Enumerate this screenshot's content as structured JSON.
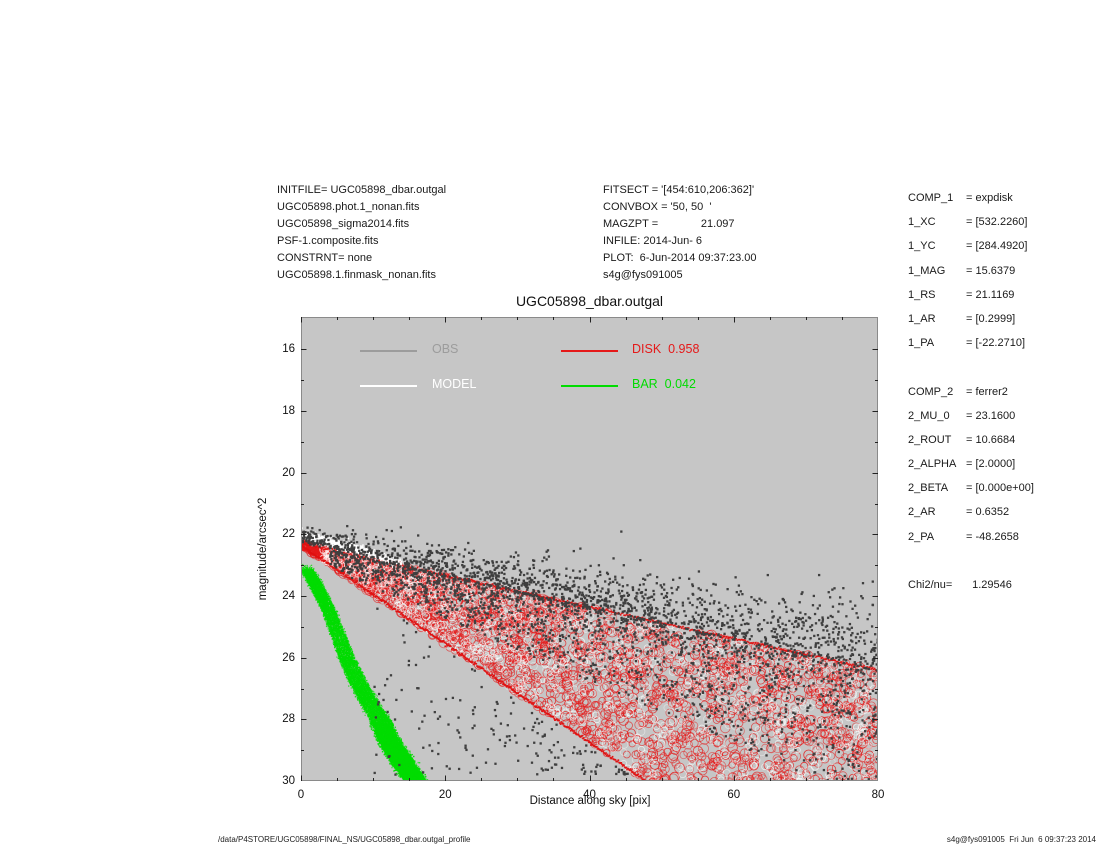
{
  "page_title": "UGC05898_dbar.outgal profile plot",
  "colors": {
    "page_bg": "#ffffff",
    "plot_bg": "#c6c6c6",
    "obs_point": "#3f3f3f",
    "obs_legend": "#9c9c9c",
    "model": "#ffffff",
    "disk": "#e51919",
    "disk_edge": "#e01010",
    "bar": "#00dc00",
    "axis_frame": "#8a8a8a",
    "tick": "#222222"
  },
  "file_info": {
    "lines": [
      "INITFILE= UGC05898_dbar.outgal",
      "UGC05898.phot.1_nonan.fits",
      "UGC05898_sigma2014.fits",
      "PSF-1.composite.fits",
      "CONSTRNT= none",
      "UGC05898.1.finmask_nonan.fits"
    ]
  },
  "fit_info": {
    "lines": [
      "FITSECT = '[454:610,206:362]'",
      "CONVBOX = '50, 50  '",
      "MAGZPT =              21.097",
      "INFILE: 2014-Jun- 6",
      "PLOT:  6-Jun-2014 09:37:23.00",
      "s4g@fys091005"
    ]
  },
  "params_panel": {
    "rows": [
      {
        "label": "COMP_1",
        "value": "expdisk"
      },
      {
        "label": "1_XC",
        "value": "[532.2260]"
      },
      {
        "label": "1_YC",
        "value": "[284.4920]"
      },
      {
        "label": "1_MAG",
        "value": "15.6379"
      },
      {
        "label": "1_RS",
        "value": "21.1169"
      },
      {
        "label": "1_AR",
        "value": "[0.2999]"
      },
      {
        "label": "1_PA",
        "value": "[-22.2710]"
      },
      {
        "label": "",
        "value": ""
      },
      {
        "label": "COMP_2",
        "value": "ferrer2"
      },
      {
        "label": "2_MU_0",
        "value": "23.1600"
      },
      {
        "label": "2_ROUT",
        "value": "10.6684"
      },
      {
        "label": "2_ALPHA",
        "value": "[2.0000]"
      },
      {
        "label": "2_BETA",
        "value": "[0.000e+00]"
      },
      {
        "label": "2_AR",
        "value": "0.6352"
      },
      {
        "label": "2_PA",
        "value": "-48.2658"
      },
      {
        "label": "",
        "value": ""
      },
      {
        "label": "Chi2/nu=",
        "value": "1.29546"
      }
    ]
  },
  "footer": {
    "left": "/data/P4STORE/UGC05898/FINAL_NS/UGC05898_dbar.outgal_profile",
    "right": "s4g@fys091005  Fri Jun  6 09:37:23 2014"
  },
  "chart_data": {
    "type": "scatter",
    "title": "UGC05898_dbar.outgal",
    "xlabel": "Distance along sky [pix]",
    "ylabel": "magnitude/arcsec^2",
    "xlim": [
      0,
      80
    ],
    "ylim": [
      30,
      14.95
    ],
    "y_axis_inverted": true,
    "xticks": [
      0,
      20,
      40,
      60,
      80
    ],
    "yticks": [
      16,
      18,
      20,
      22,
      24,
      26,
      28,
      30
    ],
    "grid": false,
    "background": "#c6c6c6",
    "legend_position": "top-left-inside",
    "legend": [
      {
        "id": "obs",
        "label": "OBS",
        "value": "",
        "color": "#9c9c9c",
        "row": 0,
        "col": 0
      },
      {
        "id": "model",
        "label": "MODEL",
        "value": "",
        "color": "#ffffff",
        "row": 1,
        "col": 0
      },
      {
        "id": "disk",
        "label": "DISK",
        "value": "0.958",
        "color": "#e51919",
        "row": 0,
        "col": 1
      },
      {
        "id": "bar",
        "label": "BAR",
        "value": "0.042",
        "color": "#00dc00",
        "row": 1,
        "col": 1
      }
    ],
    "series": [
      {
        "name": "OBS",
        "type": "scatter-cloud",
        "marker": "square",
        "color": "#3f3f3f",
        "description": "observed pixel surface-brightness values scattered around the disk wedge; spread grows with distance",
        "above_sigma_base": 0.22,
        "above_sigma_slope": 0.011,
        "inside_depth_base": 0.4,
        "inside_depth_slope": 0.05,
        "n_above": 1300,
        "n_inside": 1700,
        "n_below": 170,
        "n_center": 16
      },
      {
        "name": "MODEL",
        "type": "streak",
        "color": "#ffffff",
        "description": "total model (disk+bar) ridge just above disk wedge apex",
        "points": [
          [
            0,
            22.02
          ],
          [
            3,
            22.2
          ],
          [
            6,
            22.38
          ],
          [
            9,
            22.56
          ],
          [
            11,
            22.7
          ],
          [
            14,
            22.95
          ]
        ]
      },
      {
        "name": "DISK",
        "type": "wedge",
        "color": "#e51919",
        "fraction": 0.958,
        "profile": "expdisk, mu0 ~22.3 mag/arcsec^2, slope ~0.0514 mag/pix along major axis",
        "top_edge": [
          [
            0,
            22.3
          ],
          [
            80,
            26.41
          ]
        ],
        "bottom_edge": [
          [
            0,
            22.35
          ],
          [
            47.8,
            30.0
          ]
        ]
      },
      {
        "name": "BAR",
        "type": "band",
        "color": "#00dc00",
        "fraction": 0.042,
        "profile": "ferrer2, mu_0 23.16, rout 10.67",
        "centerline": [
          [
            0.8,
            23.15
          ],
          [
            2,
            23.6
          ],
          [
            3,
            24.05
          ],
          [
            4,
            24.55
          ],
          [
            5,
            25.15
          ],
          [
            6,
            25.8
          ],
          [
            7,
            26.35
          ],
          [
            8,
            26.85
          ],
          [
            9,
            27.25
          ],
          [
            10,
            27.65
          ],
          [
            11,
            28.05
          ],
          [
            12,
            28.6
          ],
          [
            13,
            29.0
          ],
          [
            14,
            29.35
          ],
          [
            15,
            29.7
          ],
          [
            16,
            30.05
          ],
          [
            17,
            30.5
          ]
        ],
        "halfwidth_x": [
          0.8,
          1.5
        ]
      }
    ]
  }
}
